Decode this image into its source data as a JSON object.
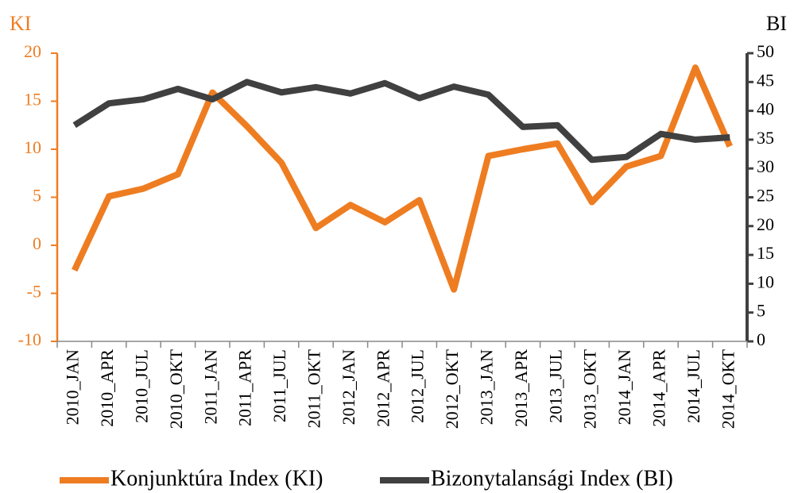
{
  "chart_data": {
    "type": "line",
    "y_label": "KI",
    "y2_label": "BI",
    "categories": [
      "2010_JAN",
      "2010_APR",
      "2010_JUL",
      "2010_OKT",
      "2011_JAN",
      "2011_APR",
      "2011_JUL",
      "2011_OKT",
      "2012_JAN",
      "2012_APR",
      "2012_JUL",
      "2012_OKT",
      "2013_JAN",
      "2013_APR",
      "2013_JUL",
      "2013_OKT",
      "2014_JAN",
      "2014_APR",
      "2014_JUL",
      "2014_OKT"
    ],
    "series": [
      {
        "name": "Konjunktúra Index (KI)",
        "color": "#ee7d22",
        "axis": "y",
        "values": [
          -2.6,
          5.1,
          5.9,
          7.4,
          15.9,
          12.4,
          8.6,
          1.8,
          4.2,
          2.4,
          4.7,
          -4.6,
          9.3,
          10.0,
          10.6,
          4.5,
          8.2,
          9.3,
          18.5,
          10.3
        ]
      },
      {
        "name": "Bizonytalansági Index (BI)",
        "color": "#404040",
        "axis": "y2",
        "values": [
          37.5,
          41.3,
          42.0,
          43.8,
          42.0,
          45.0,
          43.2,
          44.1,
          43.0,
          44.8,
          42.2,
          44.2,
          42.8,
          37.2,
          37.5,
          31.5,
          32.0,
          36.0,
          35.0,
          35.4
        ]
      }
    ],
    "ylim": [
      -10,
      20
    ],
    "yticks": [
      -10,
      -5,
      0,
      5,
      10,
      15,
      20
    ],
    "y2lim": [
      0,
      50
    ],
    "y2ticks": [
      0,
      5,
      10,
      15,
      20,
      25,
      30,
      35,
      40,
      45,
      50
    ],
    "y_color": "#ee7d22",
    "y2_color": "#404040",
    "grid": false,
    "legend": "bottom"
  }
}
